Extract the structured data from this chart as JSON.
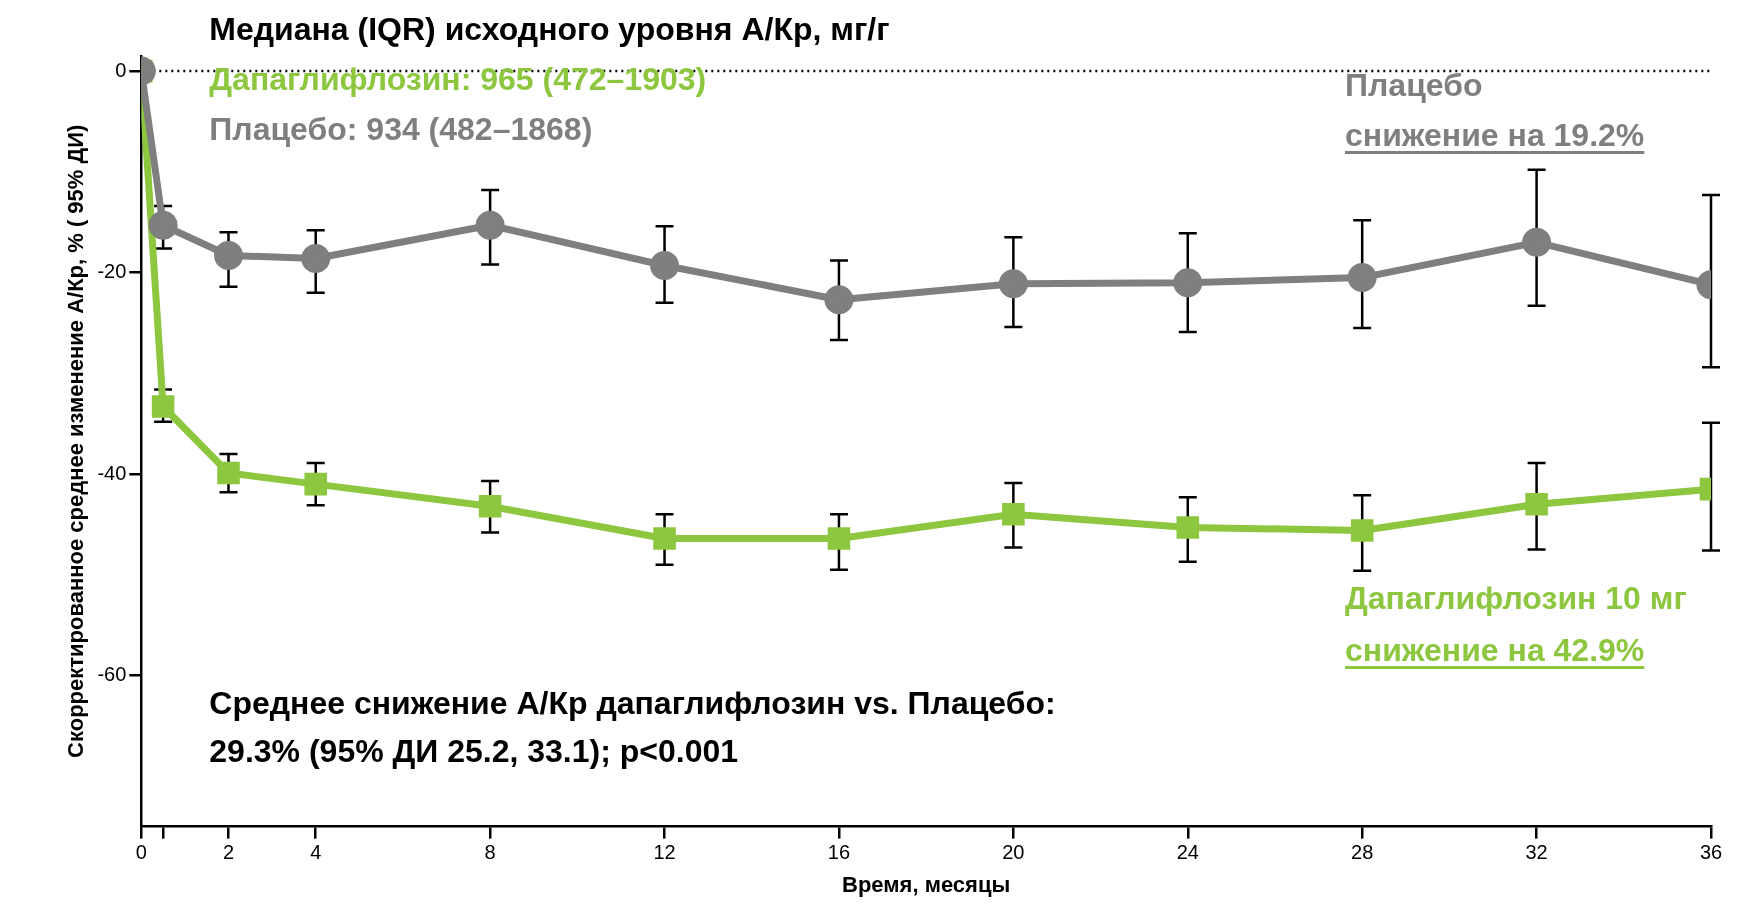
{
  "chart_data": {
    "type": "line",
    "title": "Медиана (IQR) исходного уровня А/Кр, мг/г",
    "xlabel": "Время, месяцы",
    "ylabel": "Скорректированное среднее изменение А/Кр, % ( 95% ДИ)",
    "x": [
      0,
      0.5,
      2,
      4,
      8,
      12,
      16,
      20,
      24,
      28,
      32,
      36
    ],
    "series": [
      {
        "name": "Плацебо",
        "color": "#7f7f7f",
        "marker": "circle",
        "values": [
          0,
          -15.3,
          -18.3,
          -18.6,
          -15.3,
          -19.3,
          -22.7,
          -21.1,
          -21,
          -20.5,
          -17,
          -21.2
        ],
        "errors": [
          null,
          [
            -17.6,
            -13.4
          ],
          [
            -21.4,
            -16
          ],
          [
            -22,
            -15.8
          ],
          [
            -19.2,
            -11.8
          ],
          [
            -23,
            -15.4
          ],
          [
            -26.7,
            -18.8
          ],
          [
            -25.4,
            -16.5
          ],
          [
            -25.9,
            -16.1
          ],
          [
            -25.5,
            -14.8
          ],
          [
            -23.3,
            -9.8
          ],
          [
            -29.4,
            -12.3
          ]
        ]
      },
      {
        "name": "Дапаглифлозин 10 мг",
        "color": "#8dc63f",
        "marker": "square",
        "values": [
          0,
          -33.3,
          -39.9,
          -41,
          -43.2,
          -46.4,
          -46.4,
          -44,
          -45.3,
          -45.6,
          -43,
          -41.5
        ],
        "errors": [
          null,
          [
            -34.8,
            -31.6
          ],
          [
            -41.8,
            -38
          ],
          [
            -43.1,
            -38.9
          ],
          [
            -45.8,
            -40.7
          ],
          [
            -49,
            -44
          ],
          [
            -49.5,
            -44
          ],
          [
            -47.3,
            -40.9
          ],
          [
            -48.7,
            -42.3
          ],
          [
            -49.6,
            -42.1
          ],
          [
            -47.5,
            -38.9
          ],
          [
            -47.6,
            -34.9
          ]
        ]
      }
    ],
    "annotations": [
      "Дапаглифлозин: 965 (472–1903)",
      "Плацебо: 934 (482–1868)",
      "снижение на 19.2%",
      "снижение на 42.9%",
      "Среднее снижение А/Кр дапаглифлозин vs. Плацебо:",
      "29.3% (95% ДИ 25.2, 33.1); p<0.001"
    ],
    "ref_lines": [
      {
        "axis": "y",
        "value": 0,
        "color": "#000000",
        "line_style": "dotted"
      }
    ],
    "xlim": [
      0,
      36
    ],
    "xticks": [
      0,
      {
        "value": 0.5,
        "label": null
      },
      2,
      4,
      8,
      12,
      16,
      20,
      24,
      28,
      32,
      36
    ],
    "ylim": [
      -75,
      1.5
    ],
    "yticks": [
      0,
      -20,
      -40,
      -60
    ],
    "grid": false,
    "legend": false
  }
}
